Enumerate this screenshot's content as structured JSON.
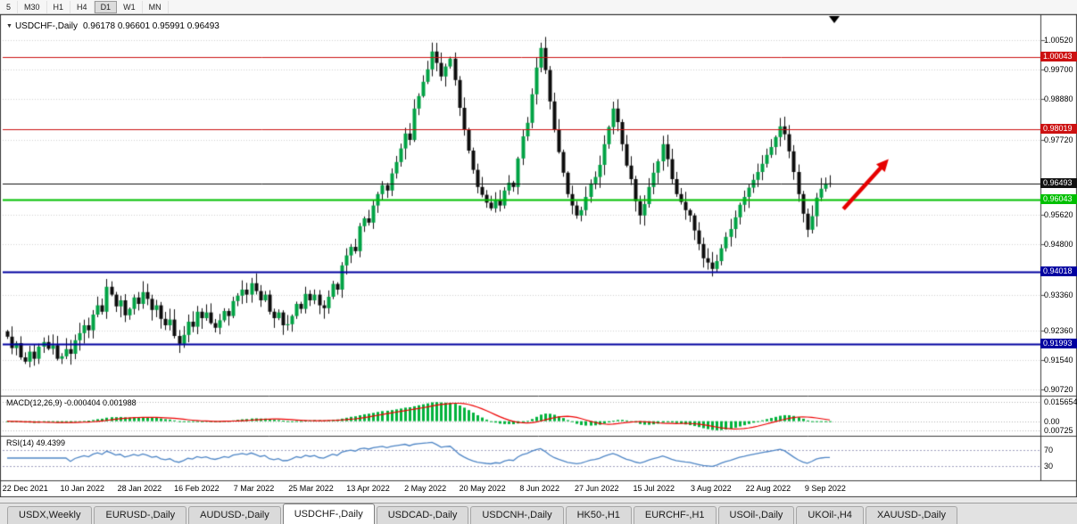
{
  "toolbar": {
    "timeframes": [
      {
        "label": "5",
        "active": false
      },
      {
        "label": "M30",
        "active": false
      },
      {
        "label": "H1",
        "active": false
      },
      {
        "label": "H4",
        "active": false
      },
      {
        "label": "D1",
        "active": true
      },
      {
        "label": "W1",
        "active": false
      },
      {
        "label": "MN",
        "active": false
      }
    ]
  },
  "chart": {
    "title_symbol": "USDCHF-,Daily",
    "title_ohlc": "0.96178 0.96601 0.95991 0.96493",
    "macd_label": "MACD(12,26,9) -0.000404 0.001988",
    "rsi_label": "RSI(14) 49.4399"
  },
  "chart_data": {
    "type": "candlestick",
    "symbol": "USDCHF",
    "timeframe": "Daily",
    "ohlc_current": {
      "open": 0.96178,
      "high": 0.96601,
      "low": 0.95991,
      "close": 0.96493
    },
    "y_ticks": [
      "1.00520",
      "0.99700",
      "0.98880",
      "0.97720",
      "0.95620",
      "0.94800",
      "0.93360",
      "0.92360",
      "0.91540",
      "0.90720"
    ],
    "price_levels": [
      {
        "price": 1.00043,
        "label": "1.00043",
        "color": "#cc1111",
        "line_width": 1
      },
      {
        "price": 0.98019,
        "label": "0.98019",
        "color": "#cc1111",
        "line_width": 1
      },
      {
        "price": 0.96493,
        "label": "0.96493",
        "color": "#111111",
        "line_width": 1
      },
      {
        "price": 0.96043,
        "label": "0.96043",
        "color": "#00c000",
        "line_width": 2
      },
      {
        "price": 0.94018,
        "label": "0.94018",
        "color": "#0000a0",
        "line_width": 2
      },
      {
        "price": 0.91993,
        "label": "0.91993",
        "color": "#0000a0",
        "line_width": 2
      }
    ],
    "x_labels": [
      "22 Dec 2021",
      "10 Jan 2022",
      "28 Jan 2022",
      "16 Feb 2022",
      "7 Mar 2022",
      "25 Mar 2022",
      "13 Apr 2022",
      "2 May 2022",
      "20 May 2022",
      "8 Jun 2022",
      "27 Jun 2022",
      "15 Jul 2022",
      "3 Aug 2022",
      "22 Aug 2022",
      "9 Sep 2022"
    ],
    "closes": [
      0.922,
      0.9188,
      0.9202,
      0.9162,
      0.915,
      0.9178,
      0.9158,
      0.9192,
      0.9205,
      0.9186,
      0.9196,
      0.9158,
      0.9165,
      0.9185,
      0.9172,
      0.921,
      0.923,
      0.9252,
      0.9238,
      0.9282,
      0.9308,
      0.929,
      0.936,
      0.9338,
      0.9305,
      0.9322,
      0.928,
      0.9298,
      0.933,
      0.9312,
      0.9345,
      0.9326,
      0.9295,
      0.9308,
      0.927,
      0.9252,
      0.9268,
      0.9222,
      0.92,
      0.9225,
      0.9262,
      0.9248,
      0.929,
      0.9272,
      0.9288,
      0.9258,
      0.9245,
      0.9266,
      0.9292,
      0.9278,
      0.932,
      0.9335,
      0.9352,
      0.9338,
      0.937,
      0.9348,
      0.9322,
      0.9338,
      0.929,
      0.9272,
      0.9288,
      0.9252,
      0.9255,
      0.9278,
      0.9312,
      0.9298,
      0.934,
      0.9322,
      0.9338,
      0.9308,
      0.93,
      0.9332,
      0.9368,
      0.9352,
      0.942,
      0.9448,
      0.9472,
      0.946,
      0.953,
      0.9552,
      0.954,
      0.9588,
      0.962,
      0.9645,
      0.963,
      0.9678,
      0.971,
      0.9748,
      0.979,
      0.9772,
      0.986,
      0.9895,
      0.9935,
      0.997,
      1.002,
      0.9988,
      0.995,
      0.9978,
      1.0,
      0.994,
      0.9862,
      0.98,
      0.9742,
      0.9688,
      0.964,
      0.9618,
      0.9596,
      0.958,
      0.9602,
      0.9588,
      0.963,
      0.9652,
      0.964,
      0.972,
      0.9782,
      0.982,
      0.99,
      0.9975,
      1.003,
      0.9968,
      0.988,
      0.98,
      0.9738,
      0.968,
      0.962,
      0.9588,
      0.956,
      0.9575,
      0.9612,
      0.965,
      0.9668,
      0.9702,
      0.976,
      0.9808,
      0.986,
      0.9822,
      0.976,
      0.97,
      0.9662,
      0.96,
      0.956,
      0.9592,
      0.964,
      0.968,
      0.9712,
      0.976,
      0.9718,
      0.9662,
      0.962,
      0.9598,
      0.9575,
      0.956,
      0.9518,
      0.948,
      0.944,
      0.9428,
      0.941,
      0.9432,
      0.9468,
      0.95,
      0.9522,
      0.9555,
      0.959,
      0.9612,
      0.9638,
      0.966,
      0.9682,
      0.9705,
      0.973,
      0.9752,
      0.978,
      0.981,
      0.9788,
      0.974,
      0.9682,
      0.962,
      0.9565,
      0.952,
      0.9558,
      0.961,
      0.9635,
      0.965,
      0.96493
    ],
    "macd": {
      "params": "12,26,9",
      "current_macd": -0.000404,
      "current_signal": 0.001988,
      "scale_labels": [
        "0.015654",
        "0.00",
        "0.00725"
      ]
    },
    "rsi": {
      "params": "14",
      "current": 49.4399,
      "level_labels": [
        "70",
        "30"
      ]
    },
    "annotation": {
      "type": "arrow",
      "direction": "up-right",
      "color": "#e60000",
      "from_candle": 185,
      "from_price": 0.9578,
      "to_candle": 195,
      "to_price": 0.9718
    },
    "colors": {
      "bull": "#00a344",
      "bear": "#0d0d0d",
      "wick": "#111111",
      "grid": "#d2d2d2",
      "macd_hist": "#00b33c",
      "macd_signal": "#ee0000",
      "rsi_line": "#4f86c6"
    }
  },
  "tabs": [
    {
      "label": "USDX,Weekly",
      "active": false
    },
    {
      "label": "EURUSD-,Daily",
      "active": false
    },
    {
      "label": "AUDUSD-,Daily",
      "active": false
    },
    {
      "label": "USDCHF-,Daily",
      "active": true
    },
    {
      "label": "USDCAD-,Daily",
      "active": false
    },
    {
      "label": "USDCNH-,Daily",
      "active": false
    },
    {
      "label": "HK50-,H1",
      "active": false
    },
    {
      "label": "EURCHF-,H1",
      "active": false
    },
    {
      "label": "USOil-,Daily",
      "active": false
    },
    {
      "label": "UKOil-,H4",
      "active": false
    },
    {
      "label": "XAUUSD-,Daily",
      "active": false
    }
  ]
}
